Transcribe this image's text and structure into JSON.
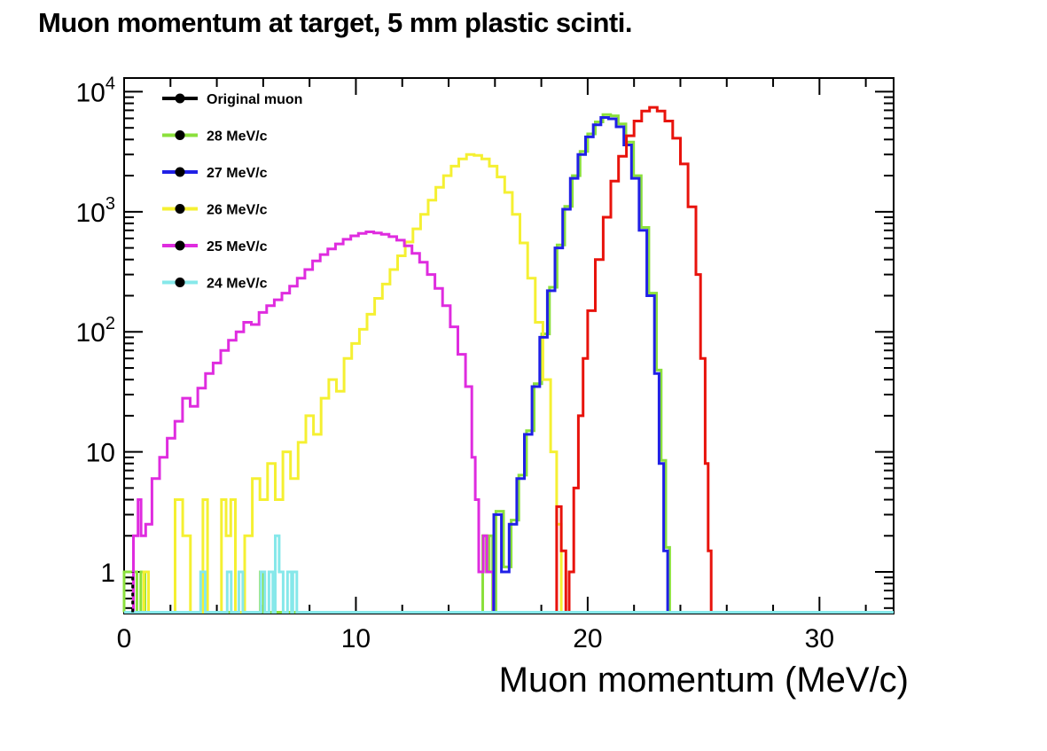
{
  "title": "Muon momentum at target, 5 mm plastic scinti.",
  "axes": {
    "x": {
      "title": "Muon momentum (MeV/c)",
      "min": 0,
      "max": 33.2,
      "major_ticks": [
        {
          "value": 0,
          "label": "0"
        },
        {
          "value": 10,
          "label": "10"
        },
        {
          "value": 20,
          "label": "20"
        },
        {
          "value": 30,
          "label": "30"
        }
      ],
      "minor_tick_step": 2
    },
    "y": {
      "scale": "log",
      "min": 0.45,
      "max": 13000,
      "grid": false,
      "tick_labels": [
        {
          "base": "1",
          "exp": "",
          "value": 1
        },
        {
          "base": "10",
          "exp": "",
          "value": 10
        },
        {
          "base": "10",
          "exp": "2",
          "value": 100
        },
        {
          "base": "10",
          "exp": "3",
          "value": 1000
        },
        {
          "base": "10",
          "exp": "4",
          "value": 10000
        }
      ]
    }
  },
  "legend": {
    "position": "top-left",
    "entries": [
      {
        "label": "Original muon",
        "color": "#000000",
        "series": "original_muon"
      },
      {
        "label": "28 MeV/c",
        "color": "#8be03c",
        "series": "p28"
      },
      {
        "label": "27 MeV/c",
        "color": "#2020e6",
        "series": "p27"
      },
      {
        "label": "26 MeV/c",
        "color": "#f5f032",
        "series": "p26"
      },
      {
        "label": "25 MeV/c",
        "color": "#df2cdf",
        "series": "p25"
      },
      {
        "label": "24 MeV/c",
        "color": "#86e8ea",
        "series": "p24"
      }
    ],
    "marker_color": "#000000"
  },
  "chart_data": {
    "type": "line",
    "style": "step-histogram",
    "xlabel": "Muon momentum (MeV/c)",
    "ylabel": "",
    "x_range": [
      0,
      33.2
    ],
    "y_range": [
      0.45,
      13000
    ],
    "y_scale": "log",
    "legend_position": "top-left",
    "grid": false,
    "draw_order": [
      "p28",
      "p26",
      "p25",
      "p27",
      "original_muon_curve",
      "p24"
    ],
    "series": [
      {
        "id": "original_muon_curve",
        "name": "Original muon (visible curve)",
        "color": "#e8130c",
        "points": [
          [
            18.66,
            3.5
          ],
          [
            18.86,
            1.5
          ],
          [
            19.06,
            0
          ],
          [
            19.2,
            1
          ],
          [
            19.4,
            5
          ],
          [
            19.6,
            20
          ],
          [
            19.8,
            60
          ],
          [
            20.0,
            150
          ],
          [
            20.33,
            400
          ],
          [
            20.67,
            900
          ],
          [
            21.0,
            1800
          ],
          [
            21.33,
            2900
          ],
          [
            21.67,
            4300
          ],
          [
            22.0,
            5700
          ],
          [
            22.33,
            6900
          ],
          [
            22.67,
            7400
          ],
          [
            23.0,
            6900
          ],
          [
            23.33,
            5700
          ],
          [
            23.67,
            4100
          ],
          [
            24.0,
            2500
          ],
          [
            24.33,
            1100
          ],
          [
            24.67,
            300
          ],
          [
            24.87,
            60
          ],
          [
            25.07,
            8
          ],
          [
            25.2,
            1.5
          ],
          [
            25.33,
            0
          ]
        ]
      },
      {
        "id": "p28",
        "name": "28 MeV/c",
        "color": "#8be03c",
        "points": [
          [
            0.0,
            1
          ],
          [
            0.55,
            0
          ],
          [
            0.72,
            1
          ],
          [
            0.9,
            0
          ],
          [
            5.88,
            1
          ],
          [
            6.02,
            0
          ],
          [
            15.47,
            2
          ],
          [
            15.63,
            1
          ],
          [
            15.75,
            2
          ],
          [
            15.9,
            0
          ],
          [
            16.04,
            3.2
          ],
          [
            16.37,
            1.1
          ],
          [
            16.7,
            2.7
          ],
          [
            17.03,
            6.4
          ],
          [
            17.36,
            15
          ],
          [
            17.69,
            37
          ],
          [
            18.02,
            96
          ],
          [
            18.35,
            235
          ],
          [
            18.68,
            530
          ],
          [
            19.01,
            1110
          ],
          [
            19.34,
            2000
          ],
          [
            19.67,
            3180
          ],
          [
            20.0,
            4450
          ],
          [
            20.33,
            5600
          ],
          [
            20.66,
            6450
          ],
          [
            20.99,
            6300
          ],
          [
            21.32,
            5400
          ],
          [
            21.65,
            3800
          ],
          [
            21.98,
            2000
          ],
          [
            22.31,
            740
          ],
          [
            22.64,
            210
          ],
          [
            22.97,
            48
          ],
          [
            23.17,
            8.5
          ],
          [
            23.37,
            1.6
          ],
          [
            23.54,
            0
          ]
        ]
      },
      {
        "id": "p27",
        "name": "27 MeV/c",
        "color": "#2020e6",
        "points": [
          [
            15.95,
            3
          ],
          [
            16.28,
            1
          ],
          [
            16.61,
            2.5
          ],
          [
            16.94,
            6
          ],
          [
            17.27,
            14
          ],
          [
            17.6,
            35
          ],
          [
            17.93,
            90
          ],
          [
            18.26,
            220
          ],
          [
            18.59,
            500
          ],
          [
            18.92,
            1050
          ],
          [
            19.25,
            1900
          ],
          [
            19.58,
            3000
          ],
          [
            19.91,
            4200
          ],
          [
            20.24,
            5300
          ],
          [
            20.57,
            6100
          ],
          [
            20.9,
            5950
          ],
          [
            21.23,
            5100
          ],
          [
            21.56,
            3600
          ],
          [
            21.89,
            1900
          ],
          [
            22.22,
            700
          ],
          [
            22.55,
            200
          ],
          [
            22.88,
            45
          ],
          [
            23.08,
            8
          ],
          [
            23.28,
            1.5
          ],
          [
            23.45,
            0
          ]
        ]
      },
      {
        "id": "p26",
        "name": "26 MeV/c",
        "color": "#f5f032",
        "points": [
          [
            0.85,
            1
          ],
          [
            1.05,
            0
          ],
          [
            2.2,
            4
          ],
          [
            2.53,
            2
          ],
          [
            2.86,
            0
          ],
          [
            3.4,
            4
          ],
          [
            3.6,
            0
          ],
          [
            4.2,
            4
          ],
          [
            4.4,
            2
          ],
          [
            4.6,
            4
          ],
          [
            4.8,
            0
          ],
          [
            5.2,
            2
          ],
          [
            5.53,
            6
          ],
          [
            5.86,
            4
          ],
          [
            6.19,
            8
          ],
          [
            6.52,
            4
          ],
          [
            6.85,
            10
          ],
          [
            7.18,
            6
          ],
          [
            7.51,
            12
          ],
          [
            7.84,
            20
          ],
          [
            8.17,
            14
          ],
          [
            8.5,
            28
          ],
          [
            8.83,
            40
          ],
          [
            9.16,
            32
          ],
          [
            9.49,
            60
          ],
          [
            9.82,
            80
          ],
          [
            10.15,
            105
          ],
          [
            10.48,
            140
          ],
          [
            10.81,
            190
          ],
          [
            11.14,
            250
          ],
          [
            11.47,
            330
          ],
          [
            11.8,
            430
          ],
          [
            12.13,
            560
          ],
          [
            12.46,
            720
          ],
          [
            12.79,
            950
          ],
          [
            13.12,
            1250
          ],
          [
            13.45,
            1600
          ],
          [
            13.78,
            2000
          ],
          [
            14.11,
            2400
          ],
          [
            14.44,
            2750
          ],
          [
            14.77,
            3000
          ],
          [
            15.1,
            2950
          ],
          [
            15.43,
            2750
          ],
          [
            15.76,
            2400
          ],
          [
            16.09,
            1950
          ],
          [
            16.42,
            1450
          ],
          [
            16.75,
            950
          ],
          [
            17.08,
            550
          ],
          [
            17.41,
            280
          ],
          [
            17.74,
            120
          ],
          [
            18.07,
            40
          ],
          [
            18.4,
            10
          ],
          [
            18.66,
            2.5
          ],
          [
            18.86,
            0
          ]
        ]
      },
      {
        "id": "p25",
        "name": "25 MeV/c",
        "color": "#df2cdf",
        "points": [
          [
            0.4,
            2
          ],
          [
            0.6,
            4
          ],
          [
            0.73,
            2
          ],
          [
            0.93,
            2.5
          ],
          [
            1.2,
            6
          ],
          [
            1.53,
            9
          ],
          [
            1.86,
            13
          ],
          [
            2.19,
            18
          ],
          [
            2.52,
            28
          ],
          [
            2.85,
            24
          ],
          [
            3.18,
            34
          ],
          [
            3.51,
            45
          ],
          [
            3.84,
            55
          ],
          [
            4.17,
            70
          ],
          [
            4.5,
            85
          ],
          [
            4.83,
            100
          ],
          [
            5.16,
            120
          ],
          [
            5.49,
            115
          ],
          [
            5.82,
            145
          ],
          [
            6.15,
            165
          ],
          [
            6.48,
            185
          ],
          [
            6.81,
            210
          ],
          [
            7.14,
            240
          ],
          [
            7.47,
            280
          ],
          [
            7.8,
            330
          ],
          [
            8.13,
            390
          ],
          [
            8.46,
            440
          ],
          [
            8.79,
            490
          ],
          [
            9.12,
            540
          ],
          [
            9.45,
            590
          ],
          [
            9.78,
            630
          ],
          [
            10.11,
            660
          ],
          [
            10.44,
            680
          ],
          [
            10.77,
            665
          ],
          [
            11.1,
            650
          ],
          [
            11.43,
            620
          ],
          [
            11.76,
            580
          ],
          [
            12.09,
            520
          ],
          [
            12.42,
            450
          ],
          [
            12.75,
            380
          ],
          [
            13.08,
            300
          ],
          [
            13.41,
            230
          ],
          [
            13.74,
            165
          ],
          [
            14.07,
            110
          ],
          [
            14.4,
            65
          ],
          [
            14.73,
            35
          ],
          [
            15.0,
            9
          ],
          [
            15.15,
            4
          ],
          [
            15.3,
            1
          ],
          [
            15.5,
            2
          ],
          [
            15.65,
            1
          ],
          [
            15.93,
            0
          ]
        ]
      },
      {
        "id": "p24",
        "name": "24 MeV/c",
        "color": "#86e8ea",
        "points": [
          [
            0,
            0
          ],
          [
            3.3,
            1
          ],
          [
            3.5,
            0
          ],
          [
            4.45,
            1
          ],
          [
            4.62,
            0
          ],
          [
            4.95,
            1
          ],
          [
            5.12,
            0
          ],
          [
            5.9,
            1
          ],
          [
            6.07,
            0
          ],
          [
            6.25,
            1
          ],
          [
            6.42,
            0
          ],
          [
            6.52,
            2
          ],
          [
            6.69,
            1
          ],
          [
            6.86,
            0
          ],
          [
            7.05,
            1
          ],
          [
            7.22,
            0
          ],
          [
            7.28,
            1
          ],
          [
            7.45,
            0
          ],
          [
            33.2,
            0
          ]
        ]
      }
    ],
    "black_dashed_mark": {
      "x": 0.37,
      "y": 1,
      "color": "#000000"
    }
  }
}
